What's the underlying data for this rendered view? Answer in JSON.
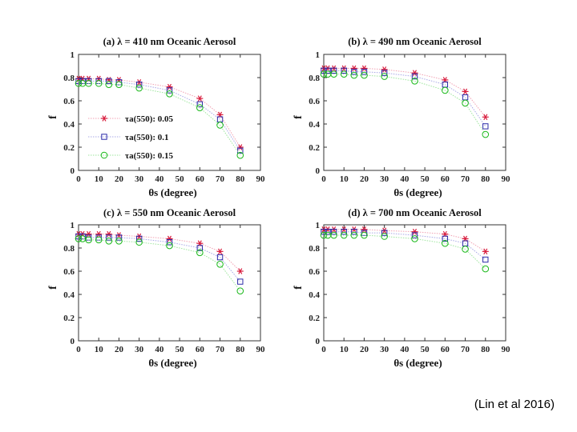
{
  "colors": {
    "series": [
      "#d81b3c",
      "#2b2ba8",
      "#18b818"
    ],
    "lines": [
      "#f1a2b4",
      "#a8a8e6",
      "#9ee69e"
    ]
  },
  "citation": "(Lin et al 2016)",
  "chart_data": [
    {
      "type": "scatter",
      "title": "(a) λ = 410 nm Oceanic Aerosol",
      "xlabel": "θs (degree)",
      "ylabel": "f",
      "xlim": [
        0,
        90
      ],
      "ylim": [
        0,
        1
      ],
      "xticks": [
        "0",
        "10",
        "20",
        "30",
        "40",
        "50",
        "60",
        "70",
        "80",
        "90"
      ],
      "yticks": [
        "0",
        "0.2",
        "0.4",
        "0.6",
        "0.8",
        "1"
      ],
      "x": [
        0,
        2,
        5,
        10,
        15,
        20,
        30,
        45,
        60,
        70,
        80
      ],
      "legend": [
        "τa(550): 0.05",
        "τa(550): 0.1",
        "τa(550): 0.15"
      ],
      "markers": [
        "star",
        "square",
        "circle"
      ],
      "series": [
        {
          "name": "τa(550): 0.05",
          "values": [
            0.79,
            0.79,
            0.79,
            0.79,
            0.78,
            0.78,
            0.76,
            0.72,
            0.62,
            0.48,
            0.2
          ]
        },
        {
          "name": "τa(550): 0.1",
          "values": [
            0.77,
            0.77,
            0.77,
            0.77,
            0.77,
            0.76,
            0.74,
            0.69,
            0.57,
            0.44,
            0.17
          ]
        },
        {
          "name": "τa(550): 0.15",
          "values": [
            0.75,
            0.75,
            0.75,
            0.75,
            0.74,
            0.74,
            0.71,
            0.66,
            0.54,
            0.39,
            0.13
          ]
        }
      ]
    },
    {
      "type": "scatter",
      "title": "(b) λ = 490 nm Oceanic Aerosol",
      "xlabel": "θs (degree)",
      "ylabel": "f",
      "xlim": [
        0,
        90
      ],
      "ylim": [
        0,
        1
      ],
      "xticks": [
        "0",
        "10",
        "20",
        "30",
        "40",
        "50",
        "60",
        "70",
        "80",
        "90"
      ],
      "yticks": [
        "0",
        "0.2",
        "0.4",
        "0.6",
        "0.8",
        "1"
      ],
      "x": [
        0,
        2,
        5,
        10,
        15,
        20,
        30,
        45,
        60,
        70,
        80
      ],
      "series": [
        {
          "name": "τa(550): 0.05",
          "values": [
            0.88,
            0.88,
            0.88,
            0.88,
            0.88,
            0.88,
            0.87,
            0.84,
            0.78,
            0.68,
            0.46
          ]
        },
        {
          "name": "τa(550): 0.1",
          "values": [
            0.86,
            0.86,
            0.86,
            0.86,
            0.85,
            0.85,
            0.84,
            0.81,
            0.74,
            0.63,
            0.38
          ]
        },
        {
          "name": "τa(550): 0.15",
          "values": [
            0.83,
            0.83,
            0.83,
            0.83,
            0.82,
            0.82,
            0.81,
            0.77,
            0.69,
            0.58,
            0.31
          ]
        }
      ]
    },
    {
      "type": "scatter",
      "title": "(c) λ = 550 nm Oceanic Aerosol",
      "xlabel": "θs (degree)",
      "ylabel": "f",
      "xlim": [
        0,
        90
      ],
      "ylim": [
        0,
        1
      ],
      "xticks": [
        "0",
        "10",
        "20",
        "30",
        "40",
        "50",
        "60",
        "70",
        "80",
        "90"
      ],
      "yticks": [
        "0",
        "0.2",
        "0.4",
        "0.6",
        "0.8",
        "1"
      ],
      "x": [
        0,
        2,
        5,
        10,
        15,
        20,
        30,
        45,
        60,
        70,
        80
      ],
      "series": [
        {
          "name": "τa(550): 0.05",
          "values": [
            0.92,
            0.92,
            0.92,
            0.92,
            0.92,
            0.91,
            0.9,
            0.88,
            0.84,
            0.77,
            0.6
          ]
        },
        {
          "name": "τa(550): 0.1",
          "values": [
            0.9,
            0.9,
            0.89,
            0.89,
            0.89,
            0.89,
            0.88,
            0.85,
            0.8,
            0.72,
            0.51
          ]
        },
        {
          "name": "τa(550): 0.15",
          "values": [
            0.88,
            0.88,
            0.87,
            0.87,
            0.86,
            0.86,
            0.85,
            0.82,
            0.76,
            0.66,
            0.43
          ]
        }
      ]
    },
    {
      "type": "scatter",
      "title": "(d) λ = 700 nm Oceanic Aerosol",
      "xlabel": "θs (degree)",
      "ylabel": "f",
      "xlim": [
        0,
        90
      ],
      "ylim": [
        0,
        1
      ],
      "xticks": [
        "0",
        "10",
        "20",
        "30",
        "40",
        "50",
        "60",
        "70",
        "80",
        "90"
      ],
      "yticks": [
        "0",
        "0.2",
        "0.4",
        "0.6",
        "0.8",
        "1"
      ],
      "x": [
        0,
        2,
        5,
        10,
        15,
        20,
        30,
        45,
        60,
        70,
        80
      ],
      "series": [
        {
          "name": "τa(550): 0.05",
          "values": [
            0.96,
            0.96,
            0.96,
            0.96,
            0.96,
            0.96,
            0.95,
            0.94,
            0.92,
            0.88,
            0.77
          ]
        },
        {
          "name": "τa(550): 0.1",
          "values": [
            0.94,
            0.94,
            0.94,
            0.94,
            0.94,
            0.93,
            0.93,
            0.91,
            0.88,
            0.84,
            0.7
          ]
        },
        {
          "name": "τa(550): 0.15",
          "values": [
            0.91,
            0.91,
            0.91,
            0.91,
            0.91,
            0.91,
            0.9,
            0.88,
            0.84,
            0.79,
            0.62
          ]
        }
      ]
    }
  ]
}
